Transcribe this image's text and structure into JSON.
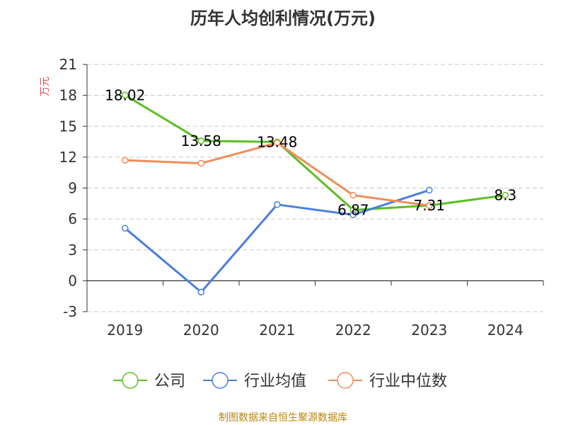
{
  "chart_data": {
    "type": "line",
    "title": "历年人均创利情况(万元)",
    "xlabel": "",
    "ylabel": "万元",
    "categories": [
      "2019",
      "2020",
      "2021",
      "2022",
      "2023",
      "2024"
    ],
    "ylim": [
      -3,
      21
    ],
    "yticks": [
      "21",
      "18",
      "15",
      "12",
      "9",
      "6",
      "3",
      "0",
      "-3"
    ],
    "grid": true,
    "legend_position": "bottom",
    "series": [
      {
        "name": "公司",
        "color": "#5bbf21",
        "values": [
          18.02,
          13.58,
          13.48,
          6.87,
          7.31,
          8.3
        ],
        "labels": [
          "18.02",
          "13.58",
          "13.48",
          "6.87",
          "7.31",
          "8.3"
        ]
      },
      {
        "name": "行业均值",
        "color": "#4a7fdc",
        "values": [
          5.1,
          -1.1,
          7.4,
          6.4,
          8.8,
          null
        ],
        "labels": []
      },
      {
        "name": "行业中位数",
        "color": "#f28c5a",
        "values": [
          11.7,
          11.4,
          13.4,
          8.3,
          7.3,
          null
        ],
        "labels": []
      }
    ],
    "source": "制图数据来自恒生聚源数据库"
  }
}
